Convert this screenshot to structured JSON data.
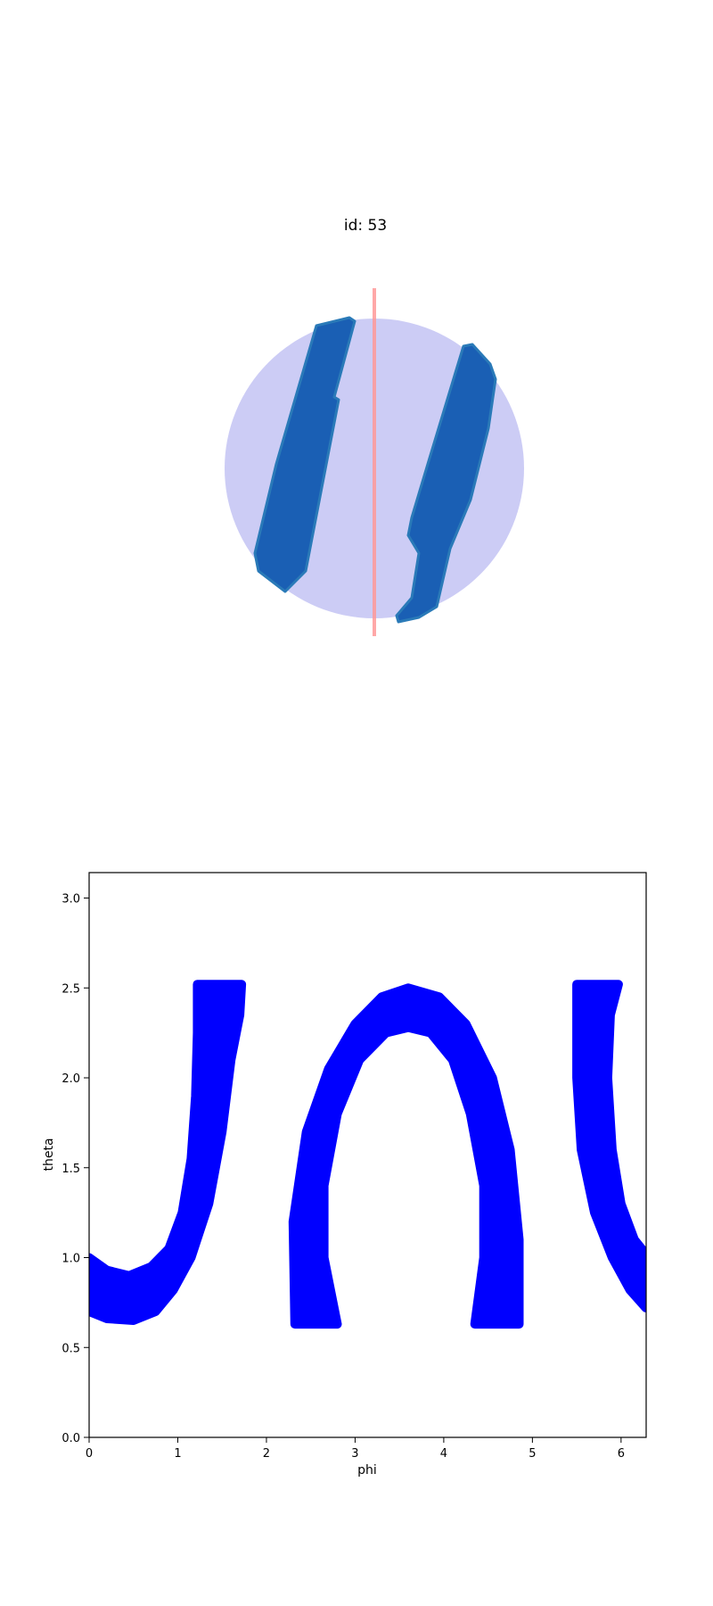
{
  "figure": {
    "title": "id: 53"
  },
  "colors": {
    "sphere": "#ccccf5",
    "band_3d": "#1a5fb4",
    "band_3d_edge": "#2a7ab8",
    "axis_line": "#ff9999",
    "scatter": "#0000ff",
    "axes": "#000000"
  },
  "chart_data": [
    {
      "type": "3d-surface",
      "title": "id: 53",
      "description_shapes": [
        "sphere",
        "two tilted blue bands",
        "vertical red axis line"
      ]
    },
    {
      "type": "scatter",
      "title": "",
      "xlabel": "phi",
      "ylabel": "theta",
      "xlim": [
        0,
        6.283
      ],
      "ylim": [
        0,
        3.14159
      ],
      "x_ticks": [
        0,
        1,
        2,
        3,
        4,
        5,
        6
      ],
      "y_ticks": [
        0.0,
        0.5,
        1.0,
        1.5,
        2.0,
        2.5,
        3.0
      ],
      "grid": false,
      "series": [
        {
          "name": "",
          "color": "#0000ff",
          "regions": [
            {
              "label": "left-band",
              "outer_edge": [
                [
                  0,
                  0.7
                ],
                [
                  0.2,
                  0.66
                ],
                [
                  0.5,
                  0.65
                ],
                [
                  0.75,
                  0.7
                ],
                [
                  0.95,
                  0.82
                ],
                [
                  1.15,
                  1.0
                ],
                [
                  1.35,
                  1.3
                ],
                [
                  1.5,
                  1.7
                ],
                [
                  1.6,
                  2.1
                ],
                [
                  1.7,
                  2.35
                ],
                [
                  1.72,
                  2.52
                ]
              ],
              "inner_edge": [
                [
                  0,
                  1.0
                ],
                [
                  0.2,
                  0.93
                ],
                [
                  0.45,
                  0.9
                ],
                [
                  0.7,
                  0.95
                ],
                [
                  0.9,
                  1.05
                ],
                [
                  1.05,
                  1.25
                ],
                [
                  1.15,
                  1.55
                ],
                [
                  1.2,
                  1.9
                ],
                [
                  1.22,
                  2.25
                ],
                [
                  1.22,
                  2.52
                ]
              ]
            },
            {
              "label": "middle-arch",
              "outer_edge": [
                [
                  2.32,
                  0.63
                ],
                [
                  2.3,
                  1.2
                ],
                [
                  2.45,
                  1.7
                ],
                [
                  2.7,
                  2.05
                ],
                [
                  3.0,
                  2.3
                ],
                [
                  3.3,
                  2.45
                ],
                [
                  3.6,
                  2.5
                ],
                [
                  3.95,
                  2.45
                ],
                [
                  4.25,
                  2.3
                ],
                [
                  4.55,
                  2.0
                ],
                [
                  4.75,
                  1.6
                ],
                [
                  4.85,
                  1.1
                ],
                [
                  4.85,
                  0.63
                ]
              ],
              "inner_edge": [
                [
                  2.8,
                  0.63
                ],
                [
                  2.65,
                  1.0
                ],
                [
                  2.65,
                  1.4
                ],
                [
                  2.8,
                  1.8
                ],
                [
                  3.05,
                  2.1
                ],
                [
                  3.35,
                  2.25
                ],
                [
                  3.6,
                  2.28
                ],
                [
                  3.85,
                  2.25
                ],
                [
                  4.1,
                  2.1
                ],
                [
                  4.3,
                  1.8
                ],
                [
                  4.45,
                  1.4
                ],
                [
                  4.45,
                  1.0
                ],
                [
                  4.35,
                  0.63
                ]
              ]
            },
            {
              "label": "right-band",
              "outer_edge": [
                [
                  5.5,
                  2.52
                ],
                [
                  5.5,
                  2.0
                ],
                [
                  5.55,
                  1.6
                ],
                [
                  5.7,
                  1.25
                ],
                [
                  5.9,
                  1.0
                ],
                [
                  6.1,
                  0.82
                ],
                [
                  6.28,
                  0.72
                ]
              ],
              "inner_edge": [
                [
                  5.97,
                  2.52
                ],
                [
                  5.88,
                  2.35
                ],
                [
                  5.85,
                  2.0
                ],
                [
                  5.9,
                  1.6
                ],
                [
                  6.0,
                  1.3
                ],
                [
                  6.15,
                  1.1
                ],
                [
                  6.28,
                  1.02
                ]
              ]
            }
          ]
        }
      ]
    }
  ]
}
